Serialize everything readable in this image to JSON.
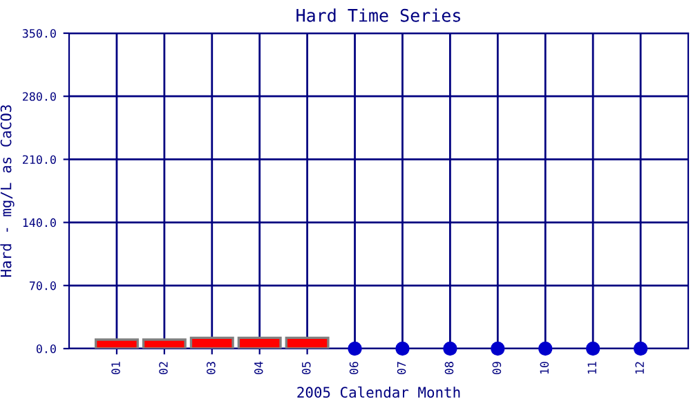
{
  "chart_data": {
    "type": "bar",
    "title": "Hard Time Series",
    "xlabel": "2005 Calendar Month",
    "ylabel": "Hard - mg/L as CaCO3",
    "categories": [
      "01",
      "02",
      "03",
      "04",
      "05",
      "06",
      "07",
      "08",
      "09",
      "10",
      "11",
      "12"
    ],
    "series": [
      {
        "color": "#ff0000",
        "values": [
          10,
          10,
          12,
          12,
          12,
          null,
          null,
          null,
          null,
          null,
          null,
          null
        ]
      },
      {
        "type": "scatter",
        "color": "#0000cc",
        "values": [
          null,
          null,
          null,
          null,
          null,
          0,
          0,
          0,
          0,
          0,
          0,
          0
        ]
      }
    ],
    "ylim": [
      0,
      350
    ],
    "yticks": [
      {
        "value": 0,
        "label": "0.0"
      },
      {
        "value": 70,
        "label": "70.0"
      },
      {
        "value": 140,
        "label": "140.0"
      },
      {
        "value": 210,
        "label": "210.0"
      },
      {
        "value": 280,
        "label": "280.0"
      },
      {
        "value": 350,
        "label": "350.0"
      }
    ],
    "grid": true,
    "marker": "circle"
  }
}
